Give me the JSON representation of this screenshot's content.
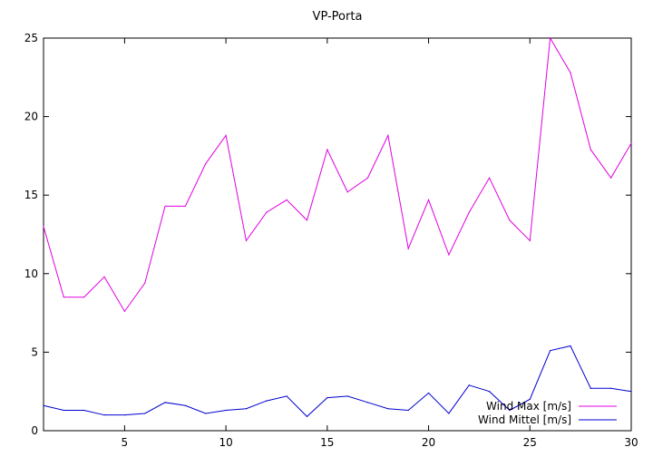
{
  "chart_data": {
    "type": "line",
    "title": "VP-Porta",
    "xlabel": "",
    "ylabel": "",
    "xlim": [
      1,
      30
    ],
    "ylim": [
      0,
      25
    ],
    "xticks": [
      5,
      10,
      15,
      20,
      25,
      30
    ],
    "yticks": [
      0,
      5,
      10,
      15,
      20,
      25
    ],
    "grid": false,
    "legend_position": "bottom-right",
    "x": [
      1,
      2,
      3,
      4,
      5,
      6,
      7,
      8,
      9,
      10,
      11,
      12,
      13,
      14,
      15,
      16,
      17,
      18,
      19,
      20,
      21,
      22,
      23,
      24,
      25,
      26,
      27,
      28,
      29,
      30
    ],
    "series": [
      {
        "name": "Wind Max [m/s]",
        "color": "#e000e0",
        "values": [
          13.0,
          8.5,
          8.5,
          9.8,
          7.6,
          9.4,
          14.3,
          14.3,
          17.0,
          18.8,
          12.1,
          13.9,
          14.7,
          13.4,
          17.9,
          15.2,
          16.1,
          18.8,
          11.6,
          14.7,
          11.2,
          13.9,
          16.1,
          13.4,
          12.1,
          25.0,
          22.8,
          17.9,
          16.1,
          18.3
        ]
      },
      {
        "name": "Wind Mittel [m/s]",
        "color": "#0000d0",
        "values": [
          1.6,
          1.3,
          1.3,
          1.0,
          1.0,
          1.1,
          1.8,
          1.6,
          1.1,
          1.3,
          1.4,
          1.9,
          2.2,
          0.9,
          2.1,
          2.2,
          1.8,
          1.4,
          1.3,
          2.4,
          1.1,
          2.9,
          2.5,
          1.3,
          2.0,
          5.1,
          5.4,
          2.7,
          2.7,
          2.5
        ]
      }
    ]
  }
}
